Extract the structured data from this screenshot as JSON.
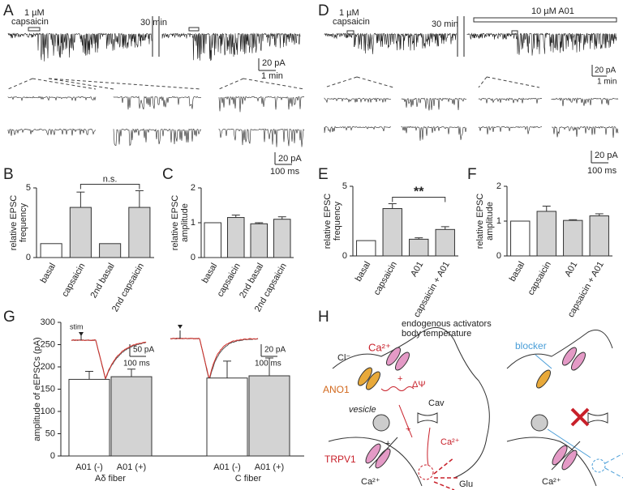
{
  "panel_labels": [
    "A",
    "B",
    "C",
    "D",
    "E",
    "F",
    "G",
    "H"
  ],
  "traces": {
    "a_conc": "1 µM",
    "a_drug": "capsaicin",
    "a_gap": "30 min",
    "a_scale1_y": "20 pA",
    "a_scale1_x": "1 min",
    "a_scale2_y": "20 pA",
    "a_scale2_x": "100 ms",
    "d_conc": "1 µM",
    "d_drug": "capsaicin",
    "d_gap": "30 min",
    "d_blocker": "10 µM A01",
    "d_scale1_y": "20 pA",
    "d_scale1_x": "1 min",
    "d_scale2_y": "20 pA",
    "d_scale2_x": "100 ms",
    "g_stim": "stim",
    "g_scale1_y": "50 pA",
    "g_scale1_x": "100 ms",
    "g_scale2_y": "20 pA",
    "g_scale2_x": "100 ms"
  },
  "chart_data": [
    {
      "type": "bar",
      "ylabel": [
        "relative EPSC",
        "frequency"
      ],
      "categories": [
        "basal",
        "capsaicin",
        "2nd basal",
        "2nd capsaicin"
      ],
      "values": [
        1,
        3.6,
        1,
        3.6
      ],
      "errors": [
        0,
        1.1,
        0,
        1.2
      ],
      "colors": [
        "#ffffff",
        "#d3d3d3",
        "#d3d3d3",
        "#d3d3d3"
      ],
      "ylim": [
        0,
        5
      ],
      "yticks": [
        0,
        5
      ],
      "annotation": "n.s."
    },
    {
      "type": "bar",
      "ylabel": [
        "relative EPSC",
        "amplitude"
      ],
      "categories": [
        "basal",
        "capsaicin",
        "2nd basal",
        "2nd capsaicin"
      ],
      "values": [
        1,
        1.15,
        0.97,
        1.1
      ],
      "errors": [
        0,
        0.07,
        0.03,
        0.07
      ],
      "colors": [
        "#ffffff",
        "#d3d3d3",
        "#d3d3d3",
        "#d3d3d3"
      ],
      "ylim": [
        0,
        2
      ],
      "yticks": [
        0,
        1,
        2
      ]
    },
    {
      "type": "bar",
      "ylabel": [
        "relative EPSC",
        "frequency"
      ],
      "categories": [
        "basal",
        "capsaicin",
        "A01",
        "capsaicin + A01"
      ],
      "values": [
        1.1,
        3.4,
        1.2,
        1.9
      ],
      "errors": [
        0,
        0.35,
        0.1,
        0.2
      ],
      "colors": [
        "#ffffff",
        "#d3d3d3",
        "#d3d3d3",
        "#d3d3d3"
      ],
      "ylim": [
        0,
        5
      ],
      "yticks": [
        0,
        5
      ],
      "annotation": "**"
    },
    {
      "type": "bar",
      "ylabel": [
        "relative EPSC",
        "amplitude"
      ],
      "categories": [
        "basal",
        "capsaicin",
        "A01",
        "capsaicin + A01"
      ],
      "values": [
        1,
        1.28,
        1.02,
        1.15
      ],
      "errors": [
        0,
        0.15,
        0.02,
        0.06
      ],
      "colors": [
        "#ffffff",
        "#d3d3d3",
        "#d3d3d3",
        "#d3d3d3"
      ],
      "ylim": [
        0,
        2
      ],
      "yticks": [
        0,
        1,
        2
      ]
    },
    {
      "type": "bar",
      "ylabel": [
        "amplitude of eEPSCs (pA)"
      ],
      "categories": [
        "A01 (-)",
        "A01 (+)",
        "A01 (-)",
        "A01 (+)"
      ],
      "groups": [
        "Aδ fiber",
        "C fiber"
      ],
      "values": [
        172,
        178,
        175,
        180
      ],
      "errors": [
        18,
        17,
        38,
        40
      ],
      "colors": [
        "#ffffff",
        "#d3d3d3",
        "#ffffff",
        "#d3d3d3"
      ],
      "ylim": [
        0,
        300
      ],
      "yticks": [
        0,
        50,
        100,
        150,
        200,
        250,
        300
      ]
    }
  ],
  "diagram": {
    "activators": "endogenous activators",
    "temperature": "body temperature",
    "cl": "Cl⁻",
    "ca_1": "Ca²⁺",
    "ano1": "ANO1",
    "dpsi": "ΔΨ",
    "plus_1": "+",
    "plus_2": "+",
    "plus_3": "+",
    "vesicle": "vesicle",
    "cav": "Cav",
    "ca_2": "Ca²⁺",
    "trpv1": "TRPV1",
    "ca_3": "Ca²⁺",
    "glu": "Glu",
    "blocker": "blocker",
    "ca_4": "Ca²⁺"
  }
}
